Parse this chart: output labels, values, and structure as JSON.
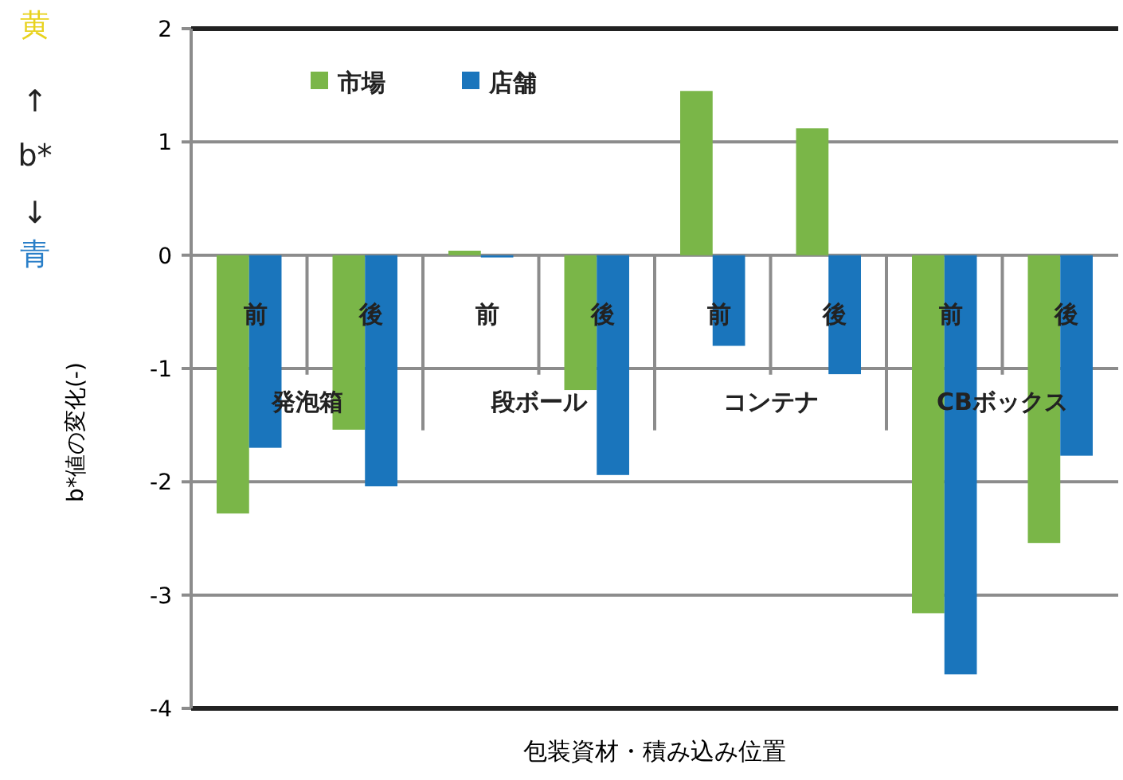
{
  "chart_data": {
    "type": "bar",
    "xlabel": "包装資材・積み込み位置",
    "ylabel": "b*値の変化(-)",
    "categories": [
      "前",
      "後",
      "前",
      "後",
      "前",
      "後",
      "前",
      "後"
    ],
    "series": [
      {
        "name": "市場",
        "color": "#7ab648",
        "values": [
          -2.28,
          -1.54,
          0.04,
          -1.19,
          1.45,
          1.12,
          -3.16,
          -2.54
        ]
      },
      {
        "name": "店舗",
        "color": "#1a75bc",
        "values": [
          -1.7,
          -2.04,
          -0.02,
          -1.94,
          -0.8,
          -1.05,
          -3.7,
          -1.77
        ]
      }
    ],
    "annotations": [
      "黄",
      "↑",
      "b*",
      "↓",
      "青",
      "発泡箱",
      "段ボール",
      "コンテナ",
      "CBボックス"
    ],
    "ylim": [
      -4,
      2
    ],
    "yticks": [
      -4,
      -3,
      -2,
      -1,
      0,
      1,
      2
    ],
    "grid": "y",
    "legend": "top left"
  }
}
